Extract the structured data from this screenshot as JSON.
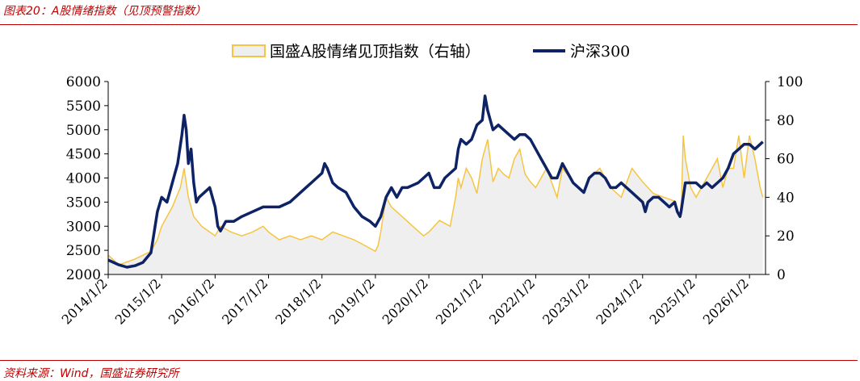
{
  "caption": "图表20：A股情绪指数（见顶预警指数）",
  "source": "资料来源：Wind，国盛证券研究所",
  "chart_data": {
    "type": "area",
    "title": "",
    "legend_placement": "top-center",
    "legend": [
      {
        "name": "国盛A股情绪见顶指数（右轴）",
        "color": "#f5c542",
        "fill": "#efefef",
        "type": "area"
      },
      {
        "name": "沪深300",
        "color": "#0d2366",
        "type": "line"
      }
    ],
    "x_ticks": [
      "2014/1/2",
      "2015/1/2",
      "2016/1/2",
      "2017/1/2",
      "2018/1/2",
      "2019/1/2",
      "2020/1/2",
      "2021/1/2",
      "2022/1/2",
      "2023/1/2",
      "2024/1/2",
      "2025/1/2",
      "2026/1/2"
    ],
    "y_left": {
      "min": 2000,
      "max": 6000,
      "step": 500,
      "ticks": [
        "2000",
        "2500",
        "3000",
        "3500",
        "4000",
        "4500",
        "5000",
        "5500",
        "6000"
      ]
    },
    "y_right": {
      "min": 0,
      "max": 100,
      "step": 20,
      "ticks": [
        "0",
        "20",
        "40",
        "60",
        "80",
        "100"
      ]
    },
    "series": [
      {
        "name": "沪深300",
        "axis": "left",
        "x": [
          2014.0,
          2014.2,
          2014.35,
          2014.5,
          2014.65,
          2014.8,
          2014.92,
          2015.0,
          2015.1,
          2015.2,
          2015.3,
          2015.38,
          2015.42,
          2015.46,
          2015.5,
          2015.55,
          2015.6,
          2015.65,
          2015.7,
          2015.8,
          2015.9,
          2016.0,
          2016.05,
          2016.1,
          2016.2,
          2016.35,
          2016.5,
          2016.7,
          2016.9,
          2017.0,
          2017.2,
          2017.4,
          2017.5,
          2017.6,
          2017.8,
          2018.0,
          2018.05,
          2018.1,
          2018.2,
          2018.3,
          2018.45,
          2018.6,
          2018.75,
          2018.9,
          2019.0,
          2019.1,
          2019.2,
          2019.3,
          2019.4,
          2019.5,
          2019.6,
          2019.8,
          2020.0,
          2020.1,
          2020.2,
          2020.3,
          2020.4,
          2020.5,
          2020.55,
          2020.6,
          2020.7,
          2020.8,
          2020.9,
          2021.0,
          2021.05,
          2021.1,
          2021.15,
          2021.2,
          2021.3,
          2021.4,
          2021.5,
          2021.6,
          2021.7,
          2021.8,
          2021.9,
          2022.0,
          2022.1,
          2022.2,
          2022.3,
          2022.4,
          2022.5,
          2022.6,
          2022.7,
          2022.8,
          2022.9,
          2023.0,
          2023.1,
          2023.2,
          2023.3,
          2023.4,
          2023.5,
          2023.6,
          2023.7,
          2023.8,
          2023.9,
          2024.0,
          2024.05,
          2024.1,
          2024.2,
          2024.3,
          2024.4,
          2024.5,
          2024.6,
          2024.65,
          2024.7,
          2024.72,
          2024.8,
          2024.9,
          2025.0,
          2025.1,
          2025.2,
          2025.3,
          2025.4,
          2025.5,
          2025.6,
          2025.7,
          2025.8,
          2025.9,
          2026.0,
          2026.1,
          2026.2,
          2026.25
        ],
        "values": [
          2300,
          2200,
          2150,
          2180,
          2250,
          2450,
          3300,
          3600,
          3500,
          3900,
          4300,
          4900,
          5300,
          5000,
          4300,
          4600,
          3900,
          3500,
          3600,
          3700,
          3800,
          3400,
          3000,
          2900,
          3100,
          3100,
          3200,
          3300,
          3400,
          3400,
          3400,
          3500,
          3600,
          3700,
          3900,
          4100,
          4300,
          4200,
          3900,
          3800,
          3700,
          3400,
          3200,
          3100,
          3000,
          3200,
          3600,
          3800,
          3600,
          3800,
          3800,
          3900,
          4100,
          3800,
          3800,
          4000,
          4100,
          4200,
          4600,
          4800,
          4700,
          4800,
          5100,
          5200,
          5700,
          5400,
          5200,
          5000,
          5100,
          5000,
          4900,
          4800,
          4900,
          4900,
          4800,
          4600,
          4400,
          4200,
          4000,
          4000,
          4300,
          4100,
          3900,
          3800,
          3700,
          4000,
          4100,
          4100,
          4000,
          3800,
          3800,
          3900,
          3800,
          3700,
          3600,
          3500,
          3300,
          3500,
          3600,
          3600,
          3500,
          3400,
          3500,
          3300,
          3200,
          3300,
          3900,
          3900,
          3900,
          3800,
          3900,
          3800,
          3900,
          4000,
          4200,
          4500,
          4600,
          4700,
          4700,
          4600,
          4700,
          4750
        ]
      },
      {
        "name": "国盛A股情绪见顶指数（右轴）",
        "axis": "right",
        "x": [
          2014.0,
          2014.2,
          2014.5,
          2014.8,
          2014.92,
          2015.0,
          2015.2,
          2015.35,
          2015.42,
          2015.5,
          2015.6,
          2015.75,
          2015.9,
          2016.0,
          2016.1,
          2016.3,
          2016.5,
          2016.7,
          2016.9,
          2017.0,
          2017.2,
          2017.4,
          2017.6,
          2017.8,
          2018.0,
          2018.2,
          2018.4,
          2018.6,
          2018.8,
          2019.0,
          2019.05,
          2019.1,
          2019.2,
          2019.3,
          2019.5,
          2019.7,
          2019.9,
          2020.0,
          2020.2,
          2020.4,
          2020.5,
          2020.55,
          2020.6,
          2020.7,
          2020.8,
          2020.9,
          2021.0,
          2021.1,
          2021.2,
          2021.3,
          2021.4,
          2021.5,
          2021.6,
          2021.7,
          2021.8,
          2021.9,
          2022.0,
          2022.2,
          2022.4,
          2022.5,
          2022.7,
          2022.9,
          2023.0,
          2023.2,
          2023.4,
          2023.6,
          2023.8,
          2024.0,
          2024.2,
          2024.4,
          2024.6,
          2024.7,
          2024.73,
          2024.76,
          2024.8,
          2024.9,
          2025.0,
          2025.1,
          2025.2,
          2025.3,
          2025.4,
          2025.5,
          2025.6,
          2025.7,
          2025.8,
          2025.9,
          2026.0,
          2026.1,
          2026.2,
          2026.25
        ],
        "values": [
          10,
          5,
          8,
          12,
          18,
          25,
          35,
          45,
          55,
          40,
          30,
          25,
          22,
          20,
          25,
          22,
          20,
          22,
          25,
          22,
          18,
          20,
          18,
          20,
          18,
          22,
          20,
          18,
          15,
          12,
          15,
          22,
          40,
          35,
          30,
          25,
          20,
          22,
          28,
          25,
          40,
          50,
          45,
          55,
          50,
          42,
          60,
          70,
          48,
          55,
          52,
          50,
          60,
          65,
          52,
          48,
          45,
          55,
          40,
          55,
          48,
          42,
          50,
          55,
          45,
          40,
          55,
          48,
          42,
          40,
          38,
          30,
          40,
          72,
          60,
          45,
          40,
          45,
          50,
          55,
          60,
          45,
          55,
          55,
          72,
          50,
          72,
          60,
          45,
          40
        ]
      }
    ]
  }
}
